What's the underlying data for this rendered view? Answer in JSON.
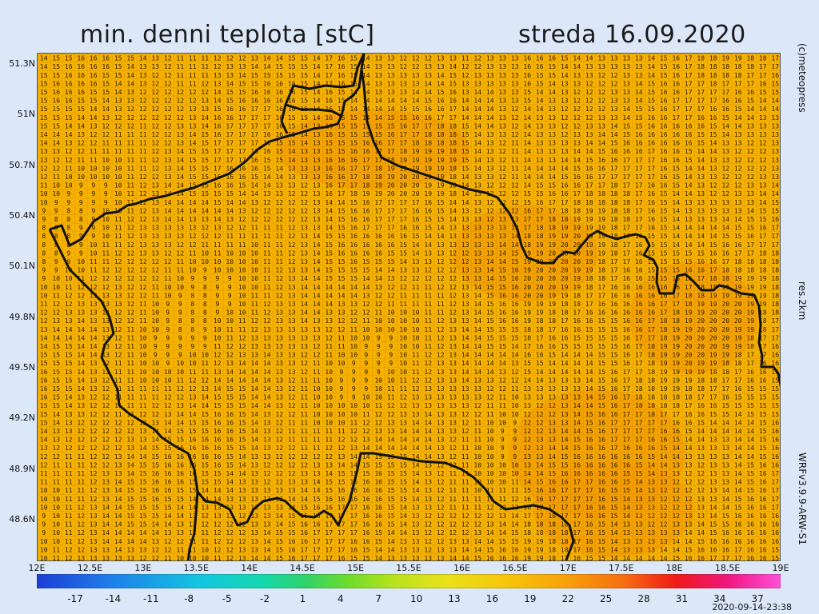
{
  "title": "min. denni teplota [stC]",
  "date": "streda 16.09.2020",
  "lat_labels": [
    "51.3N",
    "51N",
    "50.7N",
    "50.4N",
    "50.1N",
    "49.8N",
    "49.5N",
    "49.2N",
    "48.9N",
    "48.6N"
  ],
  "lon_labels": [
    "12E",
    "12.5E",
    "13E",
    "13.5E",
    "14E",
    "14.5E",
    "15E",
    "15.5E",
    "16E",
    "16.5E",
    "17E",
    "17.5E",
    "18E",
    "18.5E",
    "19E"
  ],
  "colorbar_labels": [
    "-17",
    "-14",
    "-11",
    "-8",
    "-5",
    "-2",
    "1",
    "4",
    "7",
    "10",
    "13",
    "16",
    "19",
    "22",
    "25",
    "28",
    "31",
    "34",
    "37"
  ],
  "credit_meteopress": "(c)meteopress",
  "credit_res": "res.2km",
  "credit_model": "WRFv3.9.9-ARW-S1",
  "timestamp": "2020-09-14-23:38",
  "colors": {
    "map_fill": "#f5b000",
    "warm_fill": "#f39a00",
    "border": "#111111"
  }
}
